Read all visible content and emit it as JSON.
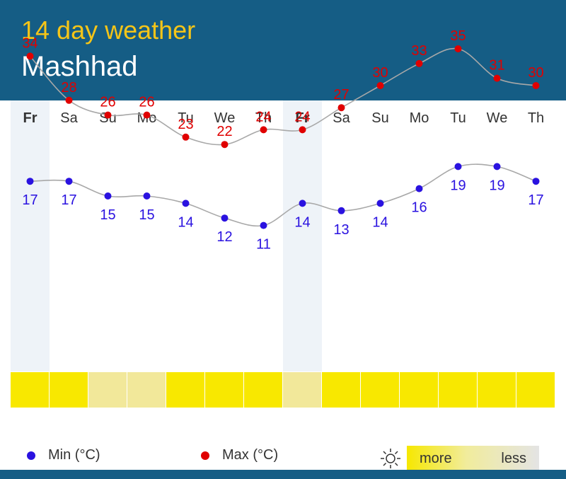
{
  "header": {
    "title": "14 day weather",
    "city": "Mashhad"
  },
  "chart_data": {
    "type": "line",
    "categories": [
      "Fr",
      "Sa",
      "Su",
      "Mo",
      "Tu",
      "We",
      "Th",
      "Fr",
      "Sa",
      "Su",
      "Mo",
      "Tu",
      "We",
      "Th"
    ],
    "highlighted_days": [
      0,
      7
    ],
    "series": [
      {
        "name": "Max (°C)",
        "color": "#e00000",
        "values": [
          34,
          28,
          26,
          26,
          23,
          22,
          24,
          24,
          27,
          30,
          33,
          35,
          31,
          30
        ]
      },
      {
        "name": "Min (°C)",
        "color": "#2a12e0",
        "values": [
          17,
          17,
          15,
          15,
          14,
          12,
          11,
          14,
          13,
          14,
          16,
          19,
          19,
          17
        ]
      }
    ],
    "sunshine": [
      "more",
      "more",
      "medium",
      "medium",
      "more",
      "more",
      "more",
      "medium",
      "more",
      "more",
      "more",
      "more",
      "more",
      "more"
    ],
    "sunshine_colors": {
      "more": "#f8e800",
      "medium": "#f2e89a"
    }
  },
  "legend": {
    "min_label": "Min (°C)",
    "max_label": "Max (°C)",
    "more_label": "more",
    "less_label": "less",
    "sun_icon": "sun-icon"
  }
}
